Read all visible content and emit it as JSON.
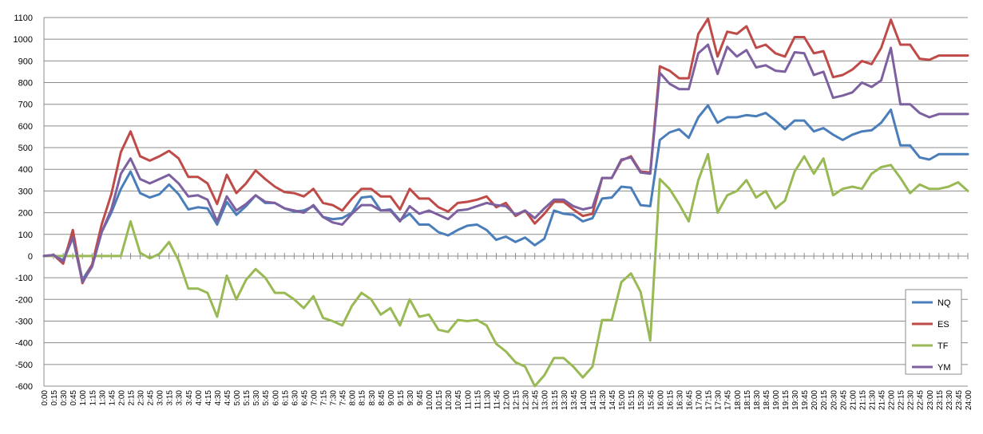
{
  "chart_data": {
    "type": "line",
    "title": "",
    "xlabel": "",
    "ylabel": "",
    "ylim": [
      -600,
      1100
    ],
    "yticks": [
      -600,
      -500,
      -400,
      -300,
      -200,
      -100,
      0,
      100,
      200,
      300,
      400,
      500,
      600,
      700,
      800,
      900,
      1000,
      1100
    ],
    "grid": "horizontal",
    "legend": "bottom-right",
    "x": [
      "0:00",
      "0:15",
      "0:30",
      "0:45",
      "1:00",
      "1:15",
      "1:30",
      "1:45",
      "2:00",
      "2:15",
      "2:30",
      "2:45",
      "3:00",
      "3:15",
      "3:30",
      "3:45",
      "4:00",
      "4:15",
      "4:30",
      "4:45",
      "5:00",
      "5:15",
      "5:30",
      "5:45",
      "6:00",
      "6:15",
      "6:30",
      "6:45",
      "7:00",
      "7:15",
      "7:30",
      "7:45",
      "8:00",
      "8:15",
      "8:30",
      "8:45",
      "9:00",
      "9:15",
      "9:30",
      "9:45",
      "10:00",
      "10:15",
      "10:30",
      "10:45",
      "11:00",
      "11:15",
      "11:30",
      "11:45",
      "12:00",
      "12:15",
      "12:30",
      "12:45",
      "13:00",
      "13:15",
      "13:30",
      "13:45",
      "14:00",
      "14:15",
      "14:30",
      "14:45",
      "15:00",
      "15:15",
      "15:30",
      "15:45",
      "16:00",
      "16:15",
      "16:30",
      "16:45",
      "17:00",
      "17:15",
      "17:30",
      "17:45",
      "18:00",
      "18:15",
      "18:30",
      "18:45",
      "19:00",
      "19:15",
      "19:30",
      "19:45",
      "20:00",
      "20:15",
      "20:30",
      "20:45",
      "21:00",
      "21:15",
      "21:30",
      "21:45",
      "22:00",
      "22:15",
      "22:30",
      "22:45",
      "23:00",
      "23:15",
      "23:30",
      "23:45",
      "24:00"
    ],
    "series": [
      {
        "name": "NQ",
        "color": "#4a7ebb",
        "values": [
          0,
          5,
          -20,
          100,
          -110,
          -40,
          110,
          200,
          310,
          390,
          290,
          270,
          285,
          330,
          285,
          215,
          225,
          220,
          145,
          250,
          190,
          230,
          280,
          245,
          245,
          220,
          205,
          210,
          230,
          180,
          170,
          175,
          200,
          270,
          275,
          210,
          215,
          165,
          195,
          145,
          145,
          110,
          95,
          120,
          140,
          145,
          120,
          75,
          90,
          65,
          85,
          50,
          80,
          210,
          195,
          190,
          160,
          175,
          265,
          270,
          320,
          315,
          235,
          230,
          535,
          570,
          585,
          545,
          640,
          695,
          615,
          640,
          640,
          650,
          645,
          660,
          625,
          585,
          625,
          625,
          575,
          590,
          560,
          535,
          560,
          575,
          580,
          615,
          675,
          510,
          510,
          455,
          445,
          470,
          470,
          470,
          470
        ]
      },
      {
        "name": "ES",
        "color": "#be4b48",
        "values": [
          0,
          5,
          -35,
          120,
          -125,
          -40,
          145,
          285,
          480,
          575,
          460,
          440,
          460,
          485,
          450,
          365,
          365,
          335,
          240,
          375,
          290,
          335,
          395,
          355,
          320,
          295,
          290,
          275,
          310,
          245,
          235,
          210,
          265,
          310,
          310,
          275,
          275,
          215,
          310,
          265,
          265,
          225,
          205,
          245,
          250,
          260,
          275,
          225,
          245,
          185,
          210,
          150,
          195,
          250,
          250,
          215,
          185,
          195,
          360,
          360,
          440,
          460,
          390,
          385,
          875,
          855,
          820,
          820,
          1025,
          1095,
          920,
          1035,
          1025,
          1060,
          960,
          975,
          935,
          920,
          1010,
          1010,
          935,
          945,
          825,
          835,
          860,
          900,
          885,
          960,
          1090,
          975,
          975,
          910,
          905,
          925,
          925,
          925,
          925
        ]
      },
      {
        "name": "TF",
        "color": "#98b954",
        "values": [
          0,
          0,
          0,
          0,
          0,
          0,
          0,
          0,
          0,
          160,
          15,
          -10,
          10,
          65,
          -20,
          -150,
          -150,
          -170,
          -280,
          -90,
          -200,
          -110,
          -60,
          -100,
          -170,
          -170,
          -200,
          -240,
          -185,
          -285,
          -300,
          -320,
          -230,
          -170,
          -200,
          -270,
          -240,
          -320,
          -200,
          -280,
          -270,
          -340,
          -350,
          -295,
          -300,
          -295,
          -320,
          -405,
          -440,
          -490,
          -510,
          -600,
          -550,
          -470,
          -470,
          -510,
          -560,
          -510,
          -295,
          -295,
          -120,
          -80,
          -165,
          -390,
          355,
          310,
          240,
          160,
          350,
          470,
          200,
          280,
          300,
          350,
          270,
          300,
          220,
          255,
          390,
          460,
          380,
          450,
          280,
          310,
          320,
          310,
          380,
          410,
          420,
          360,
          290,
          330,
          310,
          310,
          320,
          340,
          300
        ]
      },
      {
        "name": "YM",
        "color": "#7d60a0",
        "values": [
          0,
          5,
          -25,
          85,
          -120,
          -50,
          110,
          215,
          380,
          450,
          355,
          335,
          355,
          375,
          335,
          275,
          280,
          260,
          160,
          275,
          210,
          240,
          280,
          250,
          245,
          220,
          210,
          200,
          235,
          180,
          155,
          145,
          195,
          235,
          235,
          210,
          210,
          160,
          230,
          195,
          210,
          190,
          170,
          210,
          215,
          230,
          245,
          235,
          230,
          190,
          210,
          175,
          220,
          260,
          260,
          230,
          215,
          225,
          360,
          360,
          445,
          455,
          385,
          380,
          845,
          795,
          770,
          770,
          935,
          975,
          840,
          965,
          920,
          950,
          870,
          880,
          855,
          850,
          940,
          935,
          835,
          850,
          730,
          740,
          755,
          800,
          780,
          810,
          960,
          700,
          700,
          660,
          640,
          655,
          655,
          655,
          655
        ]
      }
    ]
  }
}
